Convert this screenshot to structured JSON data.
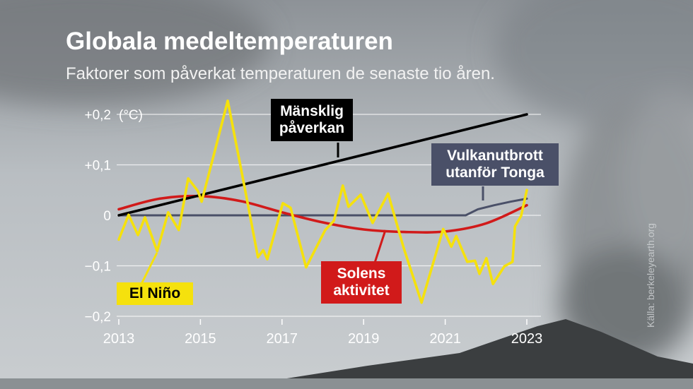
{
  "chart_data": {
    "type": "line",
    "title": "Globala medeltemperaturen",
    "subtitle": "Faktorer som påverkat temperaturen de senaste tio åren.",
    "y_unit": "(°C)",
    "source": "Källa: berkeleyearth.org",
    "xlim": [
      2013,
      2023
    ],
    "xticks": [
      2013,
      2015,
      2017,
      2019,
      2021,
      2023
    ],
    "ylim": [
      -0.2,
      0.2
    ],
    "yticks": [
      {
        "value": 0.2,
        "label": "+0,2"
      },
      {
        "value": 0.1,
        "label": "+0,1"
      },
      0,
      {
        "value": -0.1,
        "label": "−0,1"
      },
      {
        "value": -0.2,
        "label": "−0,2"
      }
    ],
    "grid": true,
    "series": [
      {
        "name": "Vulkanutbrott utanför Tonga",
        "color": "#4a5068",
        "x": [
          2013,
          2021.5,
          2021.8,
          2022.2,
          2022.6,
          2023
        ],
        "values": [
          0,
          0,
          0.012,
          0.02,
          0.027,
          0.033
        ]
      },
      {
        "name": "Solens aktivitet",
        "color": "#d11a1a",
        "x": [
          2013,
          2014,
          2015,
          2016,
          2017,
          2018,
          2019,
          2020,
          2021,
          2022,
          2023
        ],
        "values": [
          0.012,
          0.033,
          0.038,
          0.028,
          0.006,
          -0.014,
          -0.028,
          -0.033,
          -0.032,
          -0.016,
          0.02
        ]
      },
      {
        "name": "Mänsklig påverkan",
        "color": "#000000",
        "x": [
          2013,
          2023
        ],
        "values": [
          0,
          0.2
        ]
      },
      {
        "name": "El Niño",
        "color": "#f5e10d",
        "x": [
          2013.0,
          2013.24,
          2013.47,
          2013.64,
          2013.94,
          2014.21,
          2014.47,
          2014.7,
          2014.94,
          2015.03,
          2015.32,
          2015.67,
          2016.08,
          2016.41,
          2016.54,
          2016.64,
          2017.02,
          2017.21,
          2017.59,
          2018.06,
          2018.27,
          2018.49,
          2018.63,
          2018.93,
          2019.22,
          2019.6,
          2019.98,
          2020.42,
          2020.95,
          2021.15,
          2021.27,
          2021.54,
          2021.73,
          2021.84,
          2022.01,
          2022.17,
          2022.45,
          2022.65,
          2022.71,
          2022.86,
          2023.0
        ],
        "values": [
          -0.048,
          0.001,
          -0.039,
          -0.004,
          -0.071,
          0.006,
          -0.029,
          0.073,
          0.048,
          0.027,
          0.117,
          0.227,
          0.057,
          -0.083,
          -0.069,
          -0.087,
          0.024,
          0.015,
          -0.103,
          -0.029,
          -0.011,
          0.059,
          0.017,
          0.041,
          -0.015,
          0.043,
          -0.064,
          -0.173,
          -0.027,
          -0.062,
          -0.041,
          -0.092,
          -0.09,
          -0.116,
          -0.085,
          -0.136,
          -0.101,
          -0.092,
          -0.022,
          -0.001,
          0.05
        ]
      }
    ]
  }
}
